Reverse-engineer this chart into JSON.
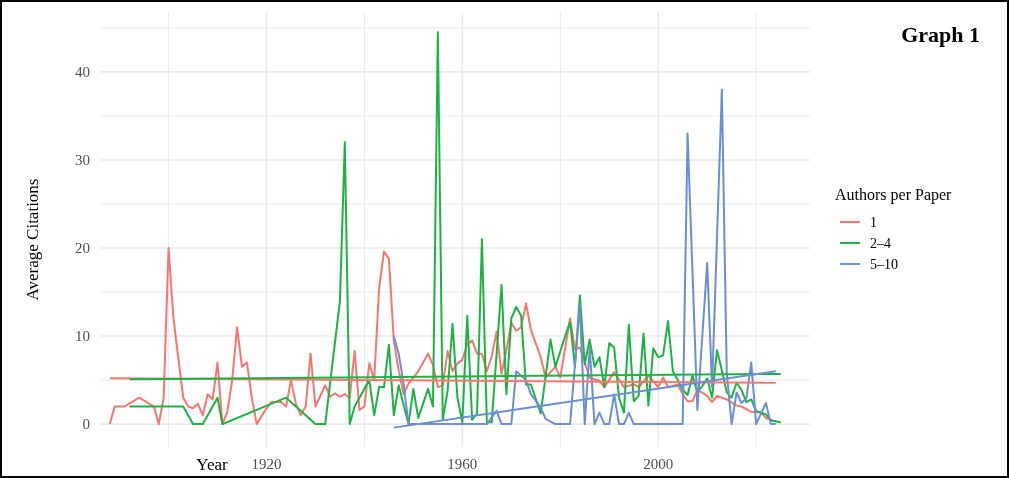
{
  "chart_data": {
    "type": "line",
    "title": "Graph 1",
    "xlabel": "Year",
    "ylabel": "Average Citations",
    "legend_title": "Authors per Paper",
    "legend": "right",
    "grid": true,
    "xlim": [
      1886,
      2031
    ],
    "xticks": [
      {
        "value": 1900,
        "label": null
      },
      1920,
      {
        "value": 1940,
        "label": null
      },
      1960,
      {
        "value": 1980,
        "label": null
      },
      2000,
      {
        "value": 2020,
        "label": null
      }
    ],
    "ylim": [
      -2.6,
      46.8
    ],
    "yticks": [
      0,
      {
        "value": 5,
        "label": null
      },
      10,
      {
        "value": 15,
        "label": null
      },
      20,
      {
        "value": 25,
        "label": null
      },
      30,
      {
        "value": 35,
        "label": null
      },
      40,
      {
        "value": 45,
        "label": null
      }
    ],
    "series": [
      {
        "name": "1",
        "color": "#f8766d",
        "x": [
          1888,
          1889,
          1891,
          1894,
          1897,
          1898,
          1899,
          1900,
          1901,
          1903,
          1904,
          1905,
          1906,
          1907,
          1908,
          1909,
          1910,
          1911,
          1912,
          1913,
          1914,
          1915,
          1916,
          1917,
          1918,
          1920,
          1921,
          1923,
          1924,
          1925,
          1926,
          1927,
          1928,
          1929,
          1930,
          1932,
          1933,
          1934,
          1935,
          1936,
          1937,
          1938,
          1939,
          1940,
          1941,
          1942,
          1943,
          1944,
          1945,
          1946,
          1947,
          1948,
          1949,
          1951,
          1953,
          1954,
          1955,
          1956,
          1957,
          1958,
          1959,
          1960,
          1961,
          1962,
          1963,
          1964,
          1965,
          1966,
          1967,
          1968,
          1969,
          1970,
          1971,
          1972,
          1973,
          1974,
          1976,
          1977,
          1979,
          1980,
          1982,
          1983,
          1984,
          1986,
          1988,
          1989,
          1991,
          1993,
          1995,
          1996,
          1998,
          2000,
          2001,
          2002,
          2004,
          2005,
          2006,
          2007,
          2008,
          2010,
          2011,
          2012,
          2013,
          2014,
          2016,
          2017,
          2019,
          2021,
          2022,
          2024
        ],
        "values": [
          0,
          2,
          2,
          3,
          2,
          0,
          3,
          20,
          12,
          3,
          2,
          1.8,
          2.3,
          1,
          3.4,
          2.8,
          7,
          0,
          1.4,
          5,
          11,
          6.5,
          7,
          3,
          0,
          1.8,
          2.5,
          2.5,
          2,
          5,
          2.3,
          1,
          2,
          8,
          2,
          4.4,
          3.1,
          3.5,
          3.1,
          3.4,
          3,
          8.3,
          1.6,
          2,
          6.9,
          5,
          15.4,
          19.6,
          18.8,
          9.5,
          6.1,
          3.4,
          4.6,
          6,
          8,
          6.7,
          4.2,
          4.4,
          8.3,
          6,
          6.9,
          7.3,
          9.1,
          9.5,
          8,
          8,
          6,
          7.7,
          10.5,
          5.7,
          8.4,
          11.5,
          10.6,
          11,
          13.7,
          10.7,
          7.6,
          5.3,
          6.5,
          5.3,
          12,
          8.5,
          8.7,
          5.3,
          4.9,
          4.2,
          5.9,
          4.2,
          4.5,
          4.2,
          5.5,
          4.2,
          5.3,
          4.2,
          4.5,
          3.4,
          2.6,
          2.6,
          3.9,
          3.2,
          2.5,
          3.2,
          3,
          2.8,
          2.1,
          2,
          1.4,
          1.3,
          0.7,
          0.3
        ]
      },
      {
        "name": "2–4",
        "color": "#1db343",
        "x": [
          1892,
          1903,
          1905,
          1907,
          1910,
          1911,
          1924,
          1930,
          1932,
          1935,
          1936,
          1937,
          1938,
          1941,
          1942,
          1943,
          1944,
          1945,
          1946,
          1947,
          1949,
          1950,
          1951,
          1953,
          1954,
          1955,
          1956,
          1957,
          1958,
          1959,
          1960,
          1961,
          1962,
          1963,
          1964,
          1965,
          1966,
          1967,
          1968,
          1969,
          1970,
          1971,
          1972,
          1973,
          1974,
          1976,
          1978,
          1979,
          1981,
          1982,
          1983,
          1984,
          1985,
          1986,
          1987,
          1988,
          1989,
          1990,
          1991,
          1992,
          1993,
          1994,
          1995,
          1996,
          1997,
          1998,
          1999,
          2000,
          2001,
          2002,
          2003,
          2004,
          2005,
          2006,
          2007,
          2008,
          2009,
          2010,
          2011,
          2012,
          2013,
          2014,
          2015,
          2016,
          2017,
          2018,
          2019,
          2020,
          2022,
          2023,
          2025
        ],
        "values": [
          2,
          2,
          0,
          0,
          3,
          0,
          3,
          0,
          0,
          14,
          32,
          0,
          2,
          5,
          1,
          4.2,
          4.2,
          9,
          1,
          4.4,
          0,
          4,
          0.7,
          4,
          2,
          44.5,
          0.5,
          3.8,
          11.4,
          3,
          0.2,
          12.3,
          0.5,
          1.2,
          21,
          0.2,
          0.2,
          8,
          15.8,
          3.4,
          12,
          13.3,
          12.3,
          4.5,
          4.5,
          1.2,
          9.6,
          6.5,
          10,
          11.6,
          6.5,
          14.6,
          6.8,
          9.6,
          6.5,
          7.6,
          4.2,
          9.2,
          8.7,
          3,
          1.3,
          11.3,
          2.6,
          3.2,
          10.3,
          2.1,
          8.6,
          7.6,
          7.8,
          11.7,
          6,
          5,
          3.9,
          3.3,
          5.5,
          3.6,
          4.3,
          5.2,
          3,
          8.4,
          6.1,
          3.6,
          3,
          4.7,
          3.9,
          2.5,
          2.8,
          1.5,
          1.1,
          0.4,
          0.2
        ]
      },
      {
        "name": "5–10",
        "color": "#6b8fd2",
        "x": [
          1946,
          1947,
          1948,
          1949,
          1965,
          1967,
          1968,
          1970,
          1971,
          1973,
          1974,
          1976,
          1977,
          1979,
          1982,
          1984,
          1985,
          1986,
          1987,
          1988,
          1989,
          1990,
          1991,
          1992,
          1993,
          1994,
          1995,
          2005,
          2006,
          2008,
          2010,
          2011,
          2013,
          2014,
          2015,
          2016,
          2017,
          2018,
          2019,
          2020,
          2022,
          2023,
          2024
        ],
        "values": [
          10,
          8,
          4.6,
          0,
          0,
          1.5,
          0,
          0,
          6,
          5,
          3.4,
          1.9,
          0.6,
          0,
          0,
          13.5,
          0,
          8.7,
          0,
          1.3,
          0,
          0,
          3.4,
          0,
          0,
          1.3,
          0,
          0,
          33,
          1.6,
          18.3,
          4.2,
          38,
          5.8,
          0,
          3.6,
          2.4,
          2.9,
          7,
          0,
          2.4,
          0,
          0
        ]
      },
      {
        "color": "#f8766d",
        "x": [
          1888,
          2024
        ],
        "values": [
          5.2,
          4.7
        ]
      },
      {
        "color": "#1db343",
        "x": [
          1892,
          2025
        ],
        "values": [
          5.1,
          5.7
        ]
      },
      {
        "color": "#6b8fd2",
        "x": [
          1946,
          2024
        ],
        "values": [
          -0.4,
          6
        ]
      }
    ]
  }
}
